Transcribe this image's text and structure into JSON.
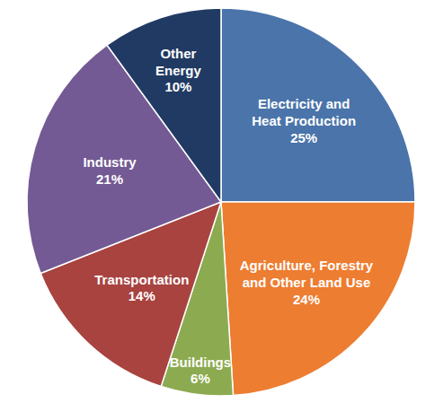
{
  "chart_data": {
    "type": "pie",
    "categories": [
      "Electricity and Heat Production",
      "Agriculture, Forestry and Other Land Use",
      "Buildings",
      "Transportation",
      "Industry",
      "Other Energy"
    ],
    "values": [
      25,
      24,
      6,
      14,
      21,
      10
    ],
    "value_labels": [
      "25%",
      "24%",
      "6%",
      "14%",
      "21%",
      "10%"
    ],
    "colors": [
      "#4a74aa",
      "#ed7d31",
      "#8cab50",
      "#a8433f",
      "#735a94",
      "#213a63"
    ],
    "data_labels": true
  }
}
